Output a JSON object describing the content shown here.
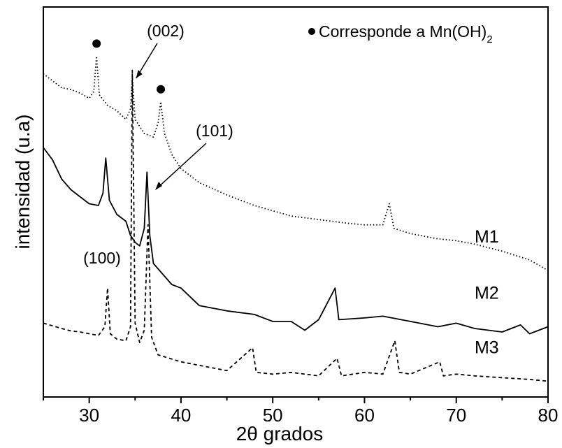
{
  "chart_data": {
    "type": "line",
    "title": "",
    "xlabel": "2θ grados",
    "ylabel": "intensidad (u.a)",
    "xlim": [
      25,
      80
    ],
    "y_unit": "arbitrary",
    "xticks": [
      "30",
      "40",
      "50",
      "60",
      "70",
      "80"
    ],
    "xtick_values": [
      30,
      40,
      50,
      60,
      70,
      80
    ],
    "legend_text": "Corresponde a Mn(OH)",
    "legend_subscript": "2",
    "legend_position": "top-right",
    "annotations": [
      {
        "text": "(002)",
        "x": 34.8
      },
      {
        "text": "(101)",
        "x": 36.3
      },
      {
        "text": "(100)",
        "x": 32.0
      }
    ],
    "markers": [
      {
        "series": "M1",
        "x": 30.8,
        "symbol": "filled-circle"
      },
      {
        "series": "M1",
        "x": 37.8,
        "symbol": "filled-circle"
      }
    ],
    "series": [
      {
        "name": "M1",
        "style": "dotted",
        "points": [
          [
            25,
            8.6
          ],
          [
            26,
            8.4
          ],
          [
            27,
            8.2
          ],
          [
            28,
            8.15
          ],
          [
            29,
            8.05
          ],
          [
            30,
            7.9
          ],
          [
            30.5,
            8.1
          ],
          [
            30.8,
            9.1
          ],
          [
            31.1,
            8.0
          ],
          [
            32,
            7.7
          ],
          [
            33,
            7.55
          ],
          [
            34,
            7.3
          ],
          [
            34.5,
            7.6
          ],
          [
            34.7,
            8.5
          ],
          [
            35,
            7.3
          ],
          [
            36,
            6.9
          ],
          [
            37,
            6.8
          ],
          [
            37.5,
            7.2
          ],
          [
            37.8,
            7.8
          ],
          [
            38.2,
            6.9
          ],
          [
            39,
            6.3
          ],
          [
            40,
            5.9
          ],
          [
            42,
            5.5
          ],
          [
            45,
            5.15
          ],
          [
            48,
            4.85
          ],
          [
            50,
            4.7
          ],
          [
            52,
            4.55
          ],
          [
            55,
            4.45
          ],
          [
            58,
            4.35
          ],
          [
            60,
            4.3
          ],
          [
            62,
            4.3
          ],
          [
            62.7,
            4.9
          ],
          [
            63.2,
            4.2
          ],
          [
            65,
            4.05
          ],
          [
            68,
            3.9
          ],
          [
            70,
            3.85
          ],
          [
            72,
            3.75
          ],
          [
            75,
            3.55
          ],
          [
            78,
            3.3
          ],
          [
            80,
            3.0
          ]
        ]
      },
      {
        "name": "M2",
        "style": "solid",
        "points": [
          [
            25,
            6.5
          ],
          [
            26,
            6.15
          ],
          [
            27,
            5.6
          ],
          [
            28,
            5.3
          ],
          [
            29,
            5.1
          ],
          [
            30,
            4.9
          ],
          [
            31,
            4.85
          ],
          [
            31.5,
            5.2
          ],
          [
            31.8,
            6.2
          ],
          [
            32.2,
            5.0
          ],
          [
            33,
            4.6
          ],
          [
            34,
            4.4
          ],
          [
            34.5,
            4.0
          ],
          [
            35,
            3.8
          ],
          [
            35.5,
            3.7
          ],
          [
            36,
            4.2
          ],
          [
            36.3,
            5.8
          ],
          [
            36.6,
            4.0
          ],
          [
            37,
            3.2
          ],
          [
            38,
            2.9
          ],
          [
            39,
            2.6
          ],
          [
            40,
            2.5
          ],
          [
            41,
            2.25
          ],
          [
            42,
            2.0
          ],
          [
            45,
            1.85
          ],
          [
            48,
            1.75
          ],
          [
            50,
            1.55
          ],
          [
            52,
            1.55
          ],
          [
            53.5,
            1.3
          ],
          [
            55,
            1.6
          ],
          [
            56.8,
            2.5
          ],
          [
            57.2,
            1.6
          ],
          [
            60,
            1.65
          ],
          [
            62,
            1.7
          ],
          [
            65,
            1.55
          ],
          [
            68,
            1.4
          ],
          [
            70,
            1.5
          ],
          [
            72,
            1.35
          ],
          [
            75,
            1.25
          ],
          [
            77,
            1.45
          ],
          [
            78,
            1.2
          ],
          [
            80,
            1.4
          ]
        ]
      },
      {
        "name": "M3",
        "style": "dashed",
        "points": [
          [
            25,
            1.5
          ],
          [
            27,
            1.35
          ],
          [
            28,
            1.28
          ],
          [
            29,
            1.25
          ],
          [
            30,
            1.2
          ],
          [
            31,
            1.15
          ],
          [
            31.7,
            1.4
          ],
          [
            32,
            2.5
          ],
          [
            32.3,
            1.2
          ],
          [
            33,
            1.05
          ],
          [
            34,
            1.0
          ],
          [
            34.5,
            1.4
          ],
          [
            34.7,
            8.7
          ],
          [
            35,
            1.5
          ],
          [
            35.5,
            0.95
          ],
          [
            36,
            1.3
          ],
          [
            36.4,
            4.3
          ],
          [
            36.8,
            1.1
          ],
          [
            37.5,
            0.6
          ],
          [
            40,
            0.4
          ],
          [
            45,
            0.15
          ],
          [
            47.8,
            0.8
          ],
          [
            48.2,
            0.1
          ],
          [
            50,
            0.05
          ],
          [
            52,
            0.1
          ],
          [
            55,
            0.0
          ],
          [
            57,
            0.5
          ],
          [
            57.5,
            0.0
          ],
          [
            60,
            0.1
          ],
          [
            62,
            0.05
          ],
          [
            63.3,
            1.0
          ],
          [
            63.8,
            0.1
          ],
          [
            65,
            0.05
          ],
          [
            68.2,
            0.4
          ],
          [
            68.6,
            0.0
          ],
          [
            70,
            0.05
          ],
          [
            72,
            0.0
          ],
          [
            75,
            -0.05
          ],
          [
            78,
            -0.1
          ],
          [
            80,
            -0.15
          ]
        ]
      }
    ]
  }
}
